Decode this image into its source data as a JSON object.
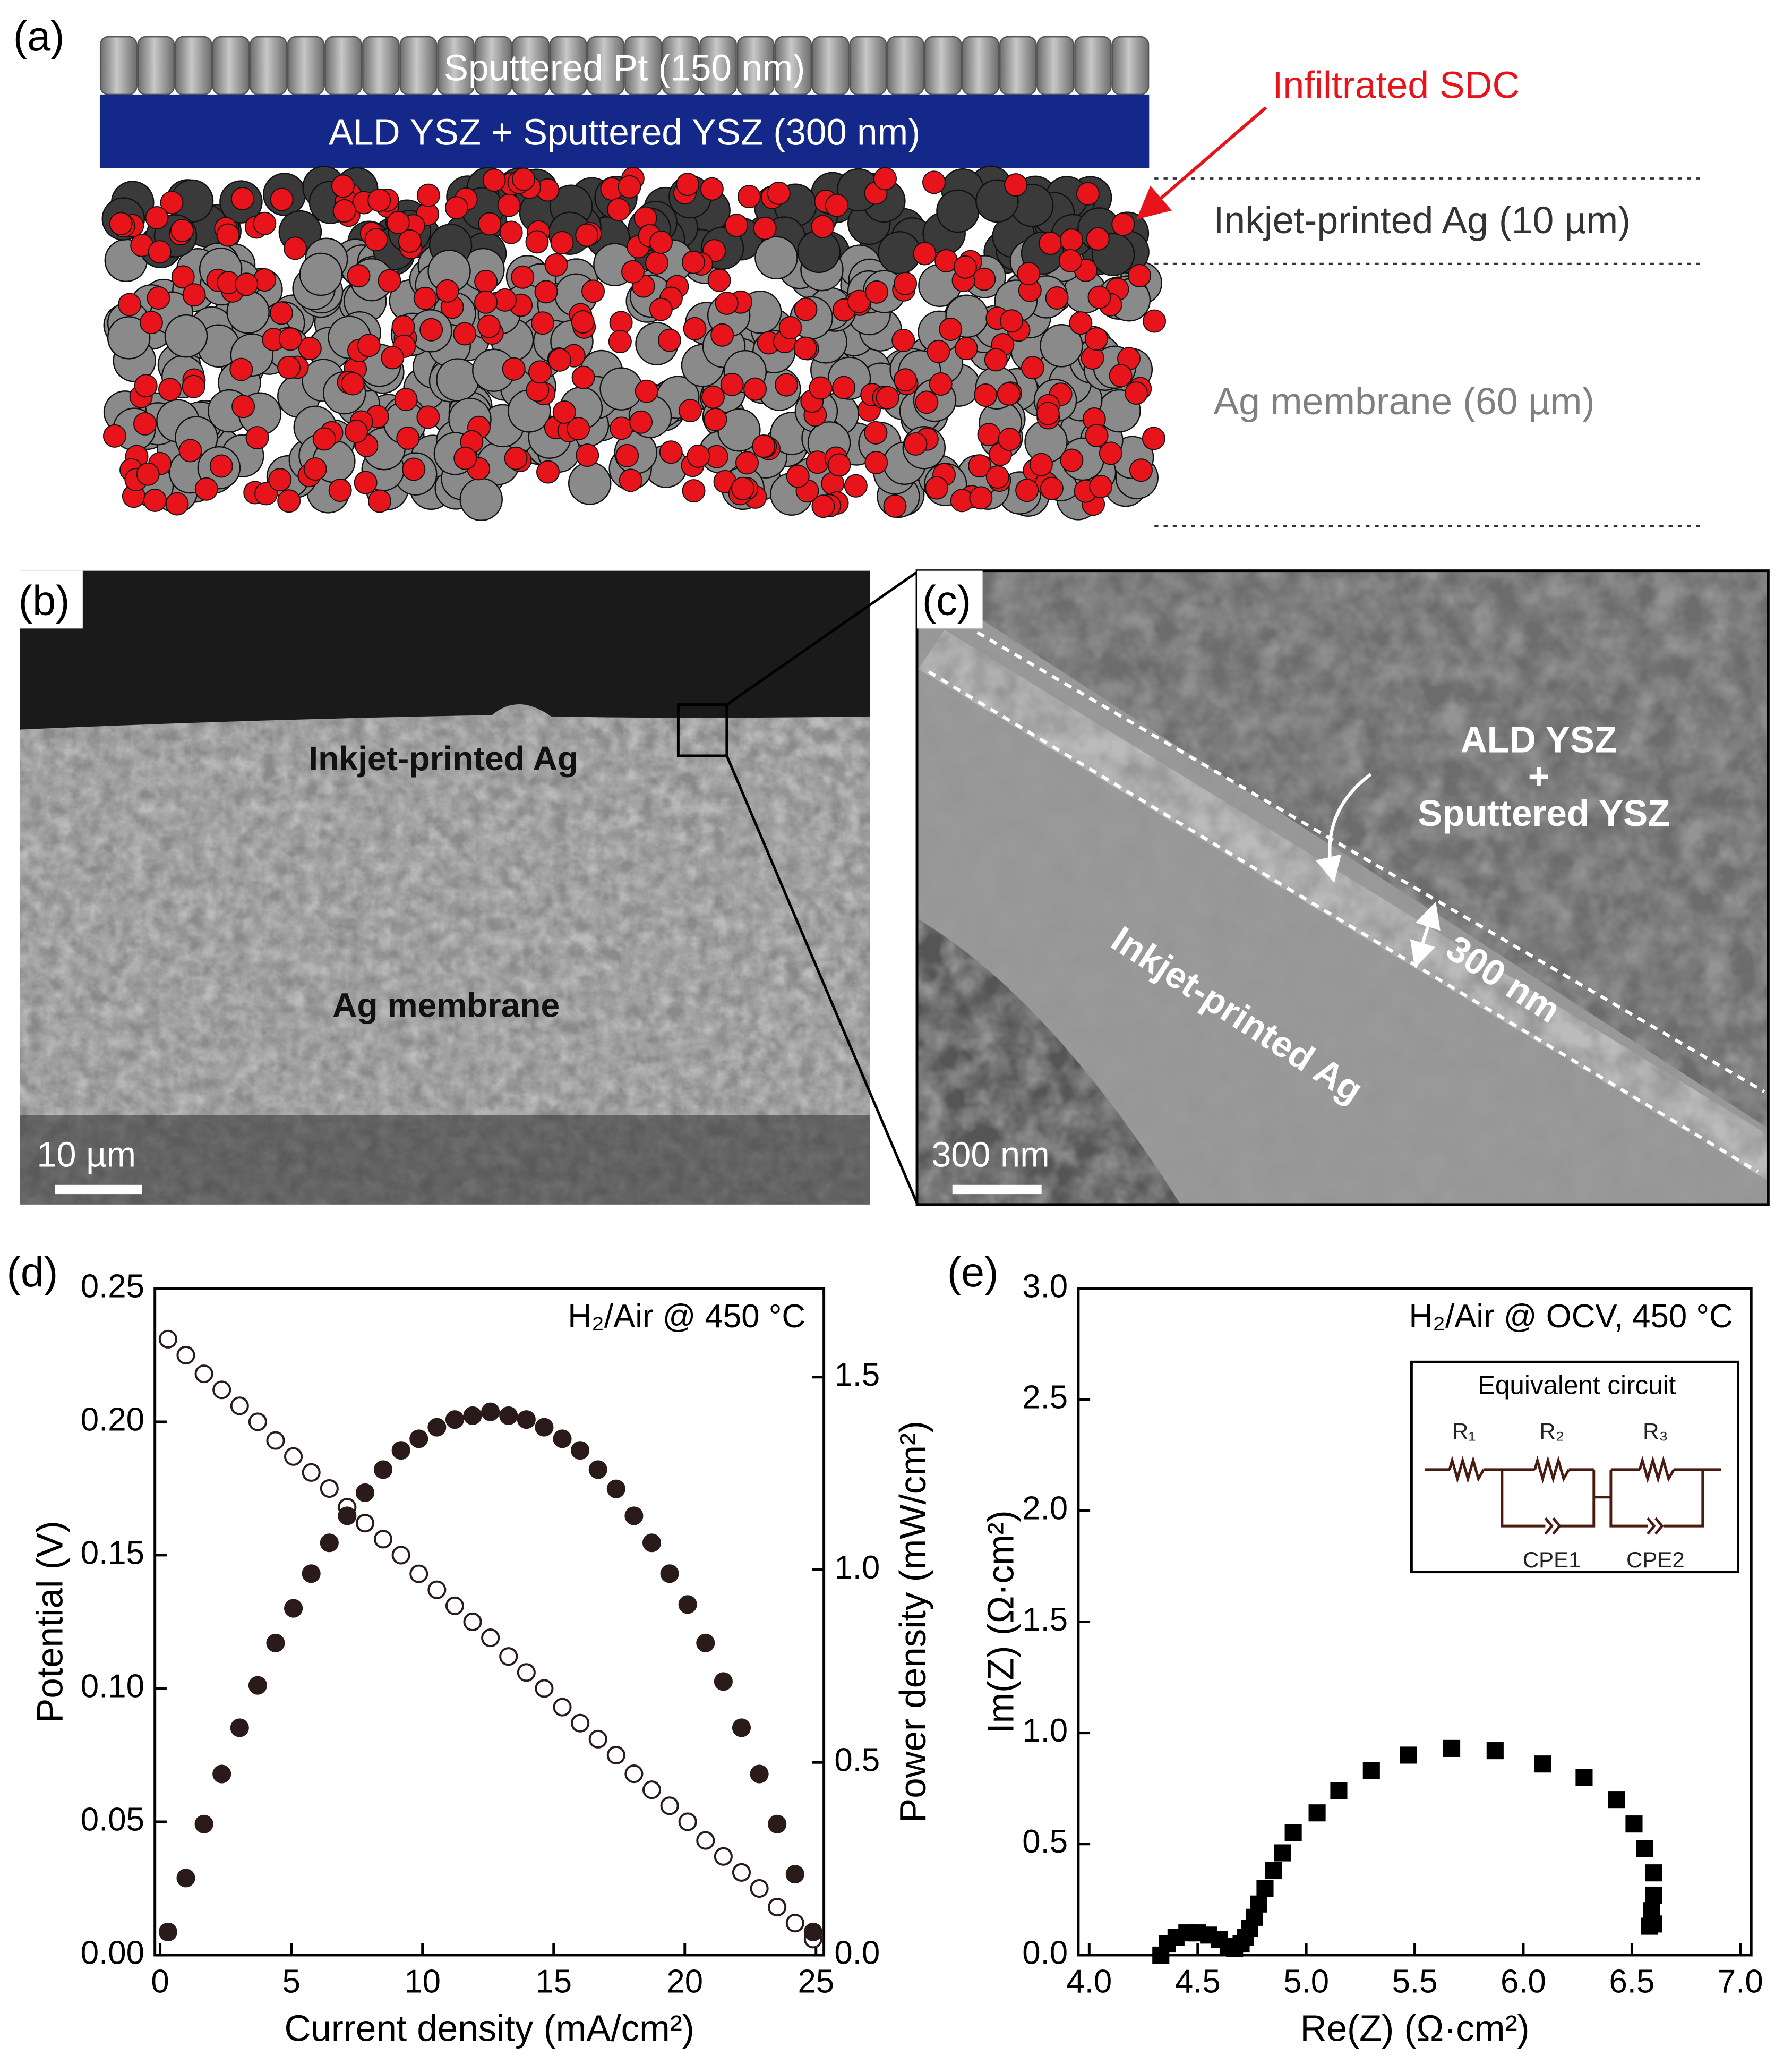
{
  "panels": {
    "a": {
      "label": "(a)",
      "layers": [
        "Sputtered Pt (150 nm)",
        "ALD YSZ + Sputtered YSZ (300 nm)"
      ],
      "annotations": [
        "Infiltrated SDC",
        "Inkjet-printed Ag (10 µm)",
        "Ag membrane (60 µm)"
      ]
    },
    "b": {
      "label": "(b)",
      "labels": [
        "Inkjet-printed Ag",
        "Ag membrane"
      ],
      "scale_bar": "10 µm"
    },
    "c": {
      "label": "(c)",
      "labels": [
        "ALD YSZ",
        "+",
        "Sputtered YSZ",
        "300 nm",
        "Inkjet-printed Ag"
      ],
      "scale_bar": "300 nm"
    }
  },
  "chart_data": [
    {
      "type": "scatter",
      "panel_label": "(d)",
      "annotation": "H₂/Air @ 450 °C",
      "x_label": "Current density (mA/cm²)",
      "y_label": "Potential (V)",
      "y2_label": "Power density (mW/cm²)",
      "x": [
        0.3,
        0.98,
        1.67,
        2.35,
        3.03,
        3.72,
        4.4,
        5.08,
        5.76,
        6.45,
        7.13,
        7.81,
        8.5,
        9.18,
        9.86,
        10.55,
        11.23,
        11.91,
        12.59,
        13.28,
        13.96,
        14.64,
        15.33,
        16.01,
        16.69,
        17.38,
        18.06,
        18.74,
        19.42,
        20.11,
        20.79,
        21.47,
        22.16,
        22.84,
        23.52,
        24.2,
        24.89
      ],
      "series": [
        {
          "marker": "circle-open",
          "color": "#2a1a1a",
          "values": [
            0.231,
            0.225,
            0.218,
            0.212,
            0.206,
            0.2,
            0.193,
            0.187,
            0.181,
            0.175,
            0.168,
            0.162,
            0.156,
            0.15,
            0.143,
            0.137,
            0.131,
            0.125,
            0.119,
            0.112,
            0.106,
            0.1,
            0.093,
            0.087,
            0.081,
            0.075,
            0.068,
            0.062,
            0.056,
            0.05,
            0.043,
            0.037,
            0.031,
            0.025,
            0.018,
            0.012,
            0.006
          ]
        },
        {
          "marker": "circle",
          "color": "#2a1a1a",
          "axis": "y2",
          "values": [
            0.06,
            0.2,
            0.34,
            0.47,
            0.59,
            0.7,
            0.81,
            0.9,
            0.99,
            1.07,
            1.14,
            1.2,
            1.26,
            1.31,
            1.34,
            1.37,
            1.39,
            1.4,
            1.41,
            1.4,
            1.39,
            1.37,
            1.34,
            1.31,
            1.26,
            1.21,
            1.14,
            1.07,
            0.99,
            0.91,
            0.81,
            0.71,
            0.59,
            0.47,
            0.34,
            0.21,
            0.06
          ]
        }
      ],
      "xlim": [
        -0.2,
        25.3
      ],
      "xticks": [
        0,
        5,
        10,
        15,
        20,
        25
      ],
      "ylim": [
        0,
        0.25
      ],
      "yticks": [
        {
          "value": 0,
          "label": "0.00"
        },
        {
          "value": 0.05,
          "label": "0.05"
        },
        {
          "value": 0.1,
          "label": "0.10"
        },
        {
          "value": 0.15,
          "label": "0.15"
        },
        {
          "value": 0.2,
          "label": "0.20"
        },
        {
          "value": 0.25,
          "label": "0.25"
        }
      ],
      "y2lim": [
        0,
        1.73
      ],
      "y2ticks": [
        {
          "value": 0,
          "label": "0.0"
        },
        {
          "value": 0.5,
          "label": "0.5"
        },
        {
          "value": 1,
          "label": "1.0"
        },
        {
          "value": 1.5,
          "label": "1.5"
        }
      ]
    },
    {
      "type": "scatter",
      "panel_label": "(e)",
      "annotation": "H₂/Air @ OCV, 450 °C",
      "x_label": "Re(Z) (Ω·cm²)",
      "y_label": "Im(Z) (Ω·cm²)",
      "inset": {
        "title": "Equivalent circuit",
        "labels": [
          "R₁",
          "R₂",
          "R₃",
          "CPE1",
          "CPE2"
        ]
      },
      "x": [
        4.33,
        4.36,
        4.4,
        4.45,
        4.5,
        4.55,
        4.6,
        4.64,
        4.67,
        4.7,
        4.72,
        4.74,
        4.76,
        4.78,
        4.81,
        4.85,
        4.89,
        4.94,
        5.05,
        5.15,
        5.3,
        5.47,
        5.67,
        5.87,
        6.09,
        6.28,
        6.43,
        6.51,
        6.56,
        6.6,
        6.6,
        6.59,
        6.6,
        6.58
      ],
      "series": [
        {
          "marker": "square",
          "color": "#000000",
          "values": [
            0.0,
            0.05,
            0.08,
            0.1,
            0.1,
            0.09,
            0.07,
            0.04,
            0.03,
            0.05,
            0.08,
            0.12,
            0.17,
            0.23,
            0.3,
            0.38,
            0.46,
            0.55,
            0.64,
            0.74,
            0.83,
            0.9,
            0.93,
            0.92,
            0.86,
            0.8,
            0.7,
            0.59,
            0.48,
            0.37,
            0.27,
            0.2,
            0.14,
            0.13
          ]
        }
      ],
      "xlim": [
        3.95,
        7.05
      ],
      "xticks": [
        {
          "value": 4,
          "label": "4.0"
        },
        {
          "value": 4.5,
          "label": "4.5"
        },
        {
          "value": 5,
          "label": "5.0"
        },
        {
          "value": 5.5,
          "label": "5.5"
        },
        {
          "value": 6,
          "label": "6.0"
        },
        {
          "value": 6.5,
          "label": "6.5"
        },
        {
          "value": 7,
          "label": "7.0"
        }
      ],
      "ylim": [
        0,
        3
      ],
      "yticks": [
        {
          "value": 0,
          "label": "0.0"
        },
        {
          "value": 0.5,
          "label": "0.5"
        },
        {
          "value": 1,
          "label": "1.0"
        },
        {
          "value": 1.5,
          "label": "1.5"
        },
        {
          "value": 2,
          "label": "2.0"
        },
        {
          "value": 2.5,
          "label": "2.5"
        },
        {
          "value": 3,
          "label": "3.0"
        }
      ]
    }
  ]
}
